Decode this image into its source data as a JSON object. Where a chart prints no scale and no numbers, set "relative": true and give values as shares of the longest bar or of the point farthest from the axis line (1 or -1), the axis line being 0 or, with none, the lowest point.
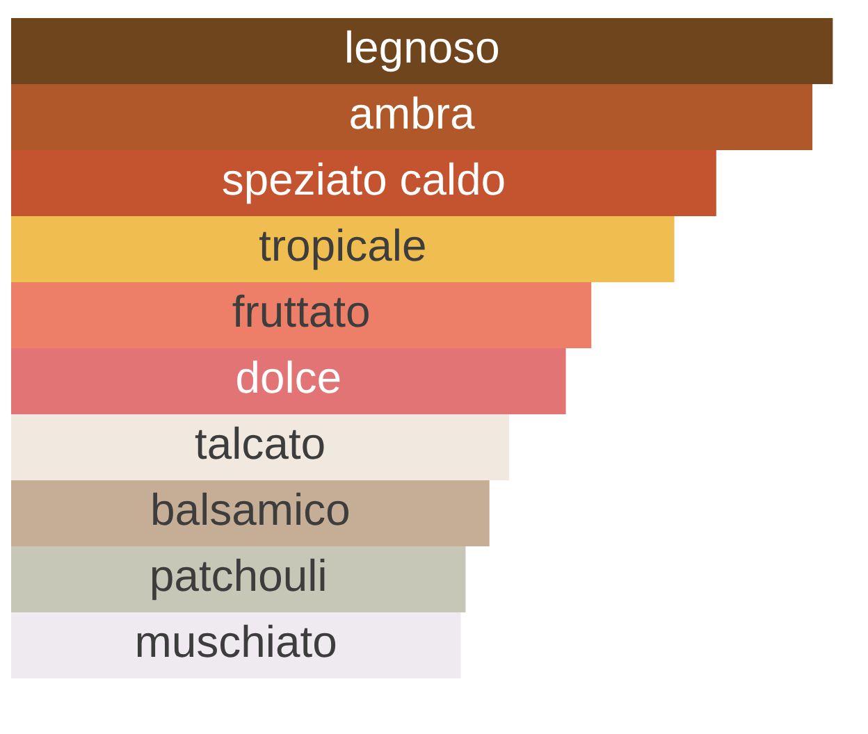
{
  "chart_data": {
    "type": "bar",
    "orientation": "horizontal",
    "relative": true,
    "categories": [
      "legnoso",
      "ambra",
      "speziato caldo",
      "tropicale",
      "fruttato",
      "dolce",
      "talcato",
      "balsamico",
      "patchouli",
      "muschiato"
    ],
    "values": [
      1,
      0.975,
      0.858,
      0.807,
      0.706,
      0.675,
      0.606,
      0.582,
      0.553,
      0.547
    ],
    "colors": [
      "#6f451e",
      "#b05829",
      "#c4542f",
      "#f0be50",
      "#ed7f69",
      "#e27475",
      "#f1e9e0",
      "#c6ae96",
      "#c6c7b7",
      "#efeaf0"
    ]
  }
}
